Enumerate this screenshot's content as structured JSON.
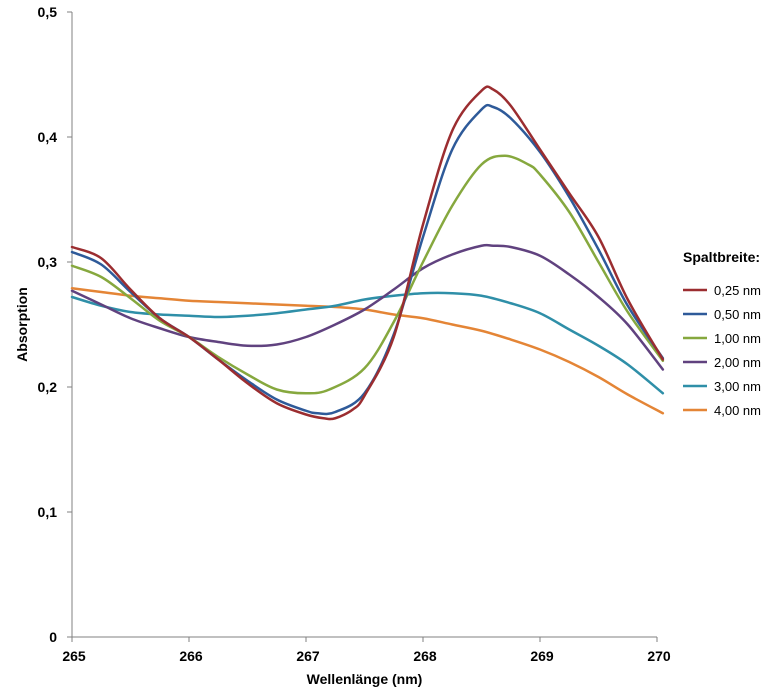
{
  "chart_data": {
    "type": "line",
    "title": "",
    "xlabel": "Wellenlänge (nm)",
    "ylabel": "Absorption",
    "xlim": [
      265,
      270
    ],
    "ylim": [
      0,
      0.5
    ],
    "x_ticks": [
      "265",
      "266",
      "267",
      "268",
      "269",
      "270"
    ],
    "y_ticks": [
      "0",
      "0,1",
      "0,2",
      "0,3",
      "0,4",
      "0,5"
    ],
    "grid": false,
    "legend_title": "Spaltbreite:",
    "legend_position": "right",
    "series": [
      {
        "name": "0,25 nm",
        "color": "#9b2d30",
        "points": [
          [
            265.0,
            0.312
          ],
          [
            265.25,
            0.303
          ],
          [
            265.5,
            0.278
          ],
          [
            265.75,
            0.255
          ],
          [
            266.0,
            0.24
          ],
          [
            266.25,
            0.222
          ],
          [
            266.5,
            0.203
          ],
          [
            266.75,
            0.187
          ],
          [
            267.0,
            0.178
          ],
          [
            267.15,
            0.175
          ],
          [
            267.25,
            0.175
          ],
          [
            267.4,
            0.182
          ],
          [
            267.5,
            0.193
          ],
          [
            267.75,
            0.24
          ],
          [
            268.0,
            0.33
          ],
          [
            268.25,
            0.405
          ],
          [
            268.5,
            0.437
          ],
          [
            268.6,
            0.438
          ],
          [
            268.75,
            0.425
          ],
          [
            269.0,
            0.39
          ],
          [
            269.25,
            0.355
          ],
          [
            269.5,
            0.32
          ],
          [
            269.75,
            0.27
          ],
          [
            270.05,
            0.222
          ]
        ]
      },
      {
        "name": "0,50 nm",
        "color": "#2e5a99",
        "points": [
          [
            265.0,
            0.308
          ],
          [
            265.25,
            0.298
          ],
          [
            265.5,
            0.276
          ],
          [
            265.75,
            0.255
          ],
          [
            266.0,
            0.24
          ],
          [
            266.25,
            0.222
          ],
          [
            266.5,
            0.205
          ],
          [
            266.75,
            0.19
          ],
          [
            267.0,
            0.181
          ],
          [
            267.1,
            0.179
          ],
          [
            267.25,
            0.18
          ],
          [
            267.5,
            0.195
          ],
          [
            267.75,
            0.242
          ],
          [
            268.0,
            0.32
          ],
          [
            268.25,
            0.39
          ],
          [
            268.5,
            0.422
          ],
          [
            268.6,
            0.424
          ],
          [
            268.75,
            0.415
          ],
          [
            269.0,
            0.388
          ],
          [
            269.25,
            0.352
          ],
          [
            269.5,
            0.31
          ],
          [
            269.75,
            0.265
          ],
          [
            270.05,
            0.223
          ]
        ]
      },
      {
        "name": "1,00 nm",
        "color": "#86a83e",
        "points": [
          [
            265.0,
            0.297
          ],
          [
            265.25,
            0.288
          ],
          [
            265.5,
            0.271
          ],
          [
            265.75,
            0.253
          ],
          [
            266.0,
            0.24
          ],
          [
            266.25,
            0.224
          ],
          [
            266.5,
            0.21
          ],
          [
            266.75,
            0.198
          ],
          [
            267.0,
            0.195
          ],
          [
            267.2,
            0.198
          ],
          [
            267.5,
            0.215
          ],
          [
            267.75,
            0.252
          ],
          [
            268.0,
            0.3
          ],
          [
            268.25,
            0.345
          ],
          [
            268.5,
            0.378
          ],
          [
            268.7,
            0.385
          ],
          [
            268.9,
            0.378
          ],
          [
            269.0,
            0.37
          ],
          [
            269.25,
            0.34
          ],
          [
            269.5,
            0.3
          ],
          [
            269.75,
            0.26
          ],
          [
            270.05,
            0.221
          ]
        ]
      },
      {
        "name": "2,00 nm",
        "color": "#60427f",
        "points": [
          [
            265.0,
            0.277
          ],
          [
            265.25,
            0.266
          ],
          [
            265.5,
            0.255
          ],
          [
            265.75,
            0.247
          ],
          [
            266.0,
            0.24
          ],
          [
            266.25,
            0.236
          ],
          [
            266.5,
            0.233
          ],
          [
            266.75,
            0.234
          ],
          [
            267.0,
            0.24
          ],
          [
            267.25,
            0.25
          ],
          [
            267.5,
            0.262
          ],
          [
            267.75,
            0.278
          ],
          [
            268.0,
            0.295
          ],
          [
            268.25,
            0.306
          ],
          [
            268.5,
            0.313
          ],
          [
            268.6,
            0.313
          ],
          [
            268.75,
            0.312
          ],
          [
            269.0,
            0.305
          ],
          [
            269.25,
            0.29
          ],
          [
            269.5,
            0.272
          ],
          [
            269.75,
            0.25
          ],
          [
            270.05,
            0.214
          ]
        ]
      },
      {
        "name": "3,00 nm",
        "color": "#2f8fa8",
        "points": [
          [
            265.0,
            0.272
          ],
          [
            265.25,
            0.265
          ],
          [
            265.5,
            0.26
          ],
          [
            265.75,
            0.258
          ],
          [
            266.0,
            0.257
          ],
          [
            266.25,
            0.256
          ],
          [
            266.5,
            0.257
          ],
          [
            266.75,
            0.259
          ],
          [
            267.0,
            0.262
          ],
          [
            267.25,
            0.265
          ],
          [
            267.5,
            0.27
          ],
          [
            267.75,
            0.273
          ],
          [
            268.0,
            0.275
          ],
          [
            268.25,
            0.275
          ],
          [
            268.5,
            0.273
          ],
          [
            268.75,
            0.267
          ],
          [
            269.0,
            0.259
          ],
          [
            269.25,
            0.246
          ],
          [
            269.5,
            0.233
          ],
          [
            269.75,
            0.218
          ],
          [
            270.05,
            0.195
          ]
        ]
      },
      {
        "name": "4,00 nm",
        "color": "#e48536",
        "points": [
          [
            265.0,
            0.279
          ],
          [
            265.25,
            0.276
          ],
          [
            265.5,
            0.273
          ],
          [
            265.75,
            0.271
          ],
          [
            266.0,
            0.269
          ],
          [
            266.25,
            0.268
          ],
          [
            266.5,
            0.267
          ],
          [
            266.75,
            0.266
          ],
          [
            267.0,
            0.265
          ],
          [
            267.25,
            0.264
          ],
          [
            267.5,
            0.262
          ],
          [
            267.75,
            0.258
          ],
          [
            268.0,
            0.255
          ],
          [
            268.25,
            0.25
          ],
          [
            268.5,
            0.245
          ],
          [
            268.75,
            0.238
          ],
          [
            269.0,
            0.23
          ],
          [
            269.25,
            0.22
          ],
          [
            269.5,
            0.208
          ],
          [
            269.75,
            0.194
          ],
          [
            270.05,
            0.179
          ]
        ]
      }
    ]
  }
}
